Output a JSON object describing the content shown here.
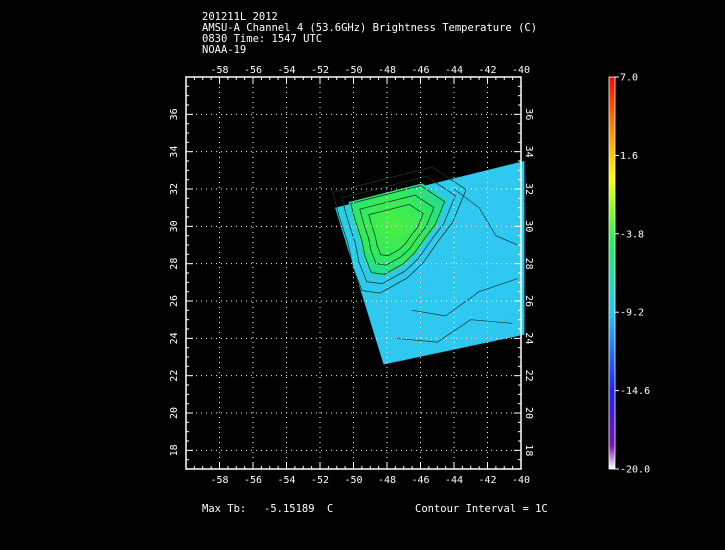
{
  "header": {
    "line1": "201211L 2012",
    "line2": "AMSU-A Channel 4 (53.6GHz) Brightness Temperature (C)",
    "line3": "0830 Time: 1547 UTC",
    "line4": "NOAA-19"
  },
  "footer": {
    "max_tb_label": "Max Tb:",
    "max_tb_value": "-5.15189",
    "max_tb_unit": "C",
    "contour_interval": "Contour Interval = 1C"
  },
  "chart_data": {
    "type": "heatmap",
    "title": "AMSU-A Channel 4 (53.6GHz) Brightness Temperature (C)",
    "x_ticks": [
      -58,
      -56,
      -54,
      -52,
      -50,
      -48,
      -46,
      -44,
      -42,
      -40
    ],
    "y_ticks": [
      18,
      20,
      22,
      24,
      26,
      28,
      30,
      32,
      34,
      36
    ],
    "xlim": [
      -60,
      -40
    ],
    "ylim": [
      17,
      38
    ],
    "grid": true,
    "colorbar": {
      "min": -20.0,
      "max": 7.0,
      "tick_labels": [
        "7.0",
        "1.6",
        "-3.8",
        "-9.2",
        "-14.6",
        "-20.0"
      ],
      "tick_values": [
        7.0,
        1.6,
        -3.8,
        -9.2,
        -14.6,
        -20.0
      ]
    },
    "swath_corners": [
      [
        -51.1,
        31.0
      ],
      [
        -39.8,
        33.5
      ],
      [
        -39.8,
        24.2
      ],
      [
        -48.2,
        22.6
      ]
    ],
    "warm_region": [
      [
        -50.3,
        31.3
      ],
      [
        -45.9,
        32.3
      ],
      [
        -44.4,
        31.4
      ],
      [
        -45.0,
        30.1
      ],
      [
        -45.6,
        29.4
      ],
      [
        -46.3,
        28.5
      ],
      [
        -47.0,
        27.9
      ],
      [
        -48.2,
        27.3
      ],
      [
        -49.0,
        27.4
      ],
      [
        -49.4,
        28.3
      ],
      [
        -49.6,
        29.2
      ],
      [
        -50.0,
        30.3
      ]
    ],
    "max_tb": -5.15189,
    "contour_interval": 1
  }
}
